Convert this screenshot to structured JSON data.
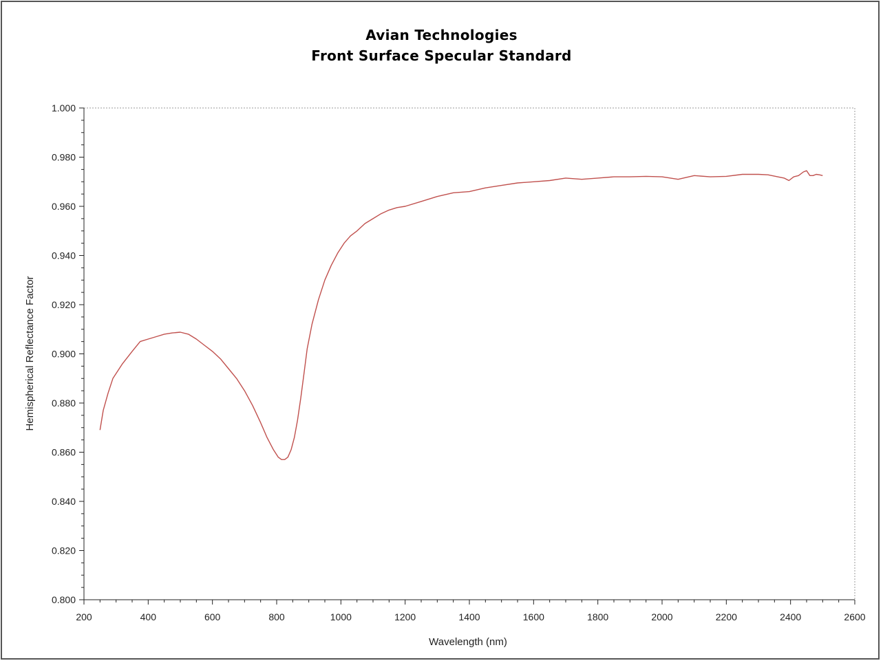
{
  "chart_data": {
    "type": "line",
    "title": "Avian Technologies",
    "subtitle": "Front Surface Specular Standard",
    "xlabel": "Wavelength (nm)",
    "ylabel": "Hemispherical Reflectance Factor",
    "xlim": [
      200,
      2600
    ],
    "ylim": [
      0.8,
      1.0
    ],
    "x_ticks": [
      "200",
      "400",
      "600",
      "800",
      "1000",
      "1200",
      "1400",
      "1600",
      "1800",
      "2000",
      "2200",
      "2400",
      "2600"
    ],
    "y_ticks": [
      "0.800",
      "0.820",
      "0.840",
      "0.860",
      "0.880",
      "0.900",
      "0.920",
      "0.940",
      "0.960",
      "0.980",
      "1.000"
    ],
    "grid": false,
    "series": [
      {
        "color": "#c0504d",
        "x": [
          250,
          260,
          275,
          290,
          320,
          350,
          375,
          400,
          425,
          450,
          475,
          500,
          525,
          550,
          575,
          600,
          625,
          650,
          675,
          700,
          725,
          750,
          770,
          790,
          805,
          815,
          825,
          835,
          845,
          855,
          865,
          875,
          885,
          895,
          910,
          930,
          950,
          970,
          990,
          1010,
          1030,
          1050,
          1075,
          1100,
          1125,
          1150,
          1175,
          1200,
          1250,
          1300,
          1350,
          1400,
          1450,
          1500,
          1550,
          1600,
          1650,
          1700,
          1750,
          1800,
          1850,
          1900,
          1950,
          2000,
          2050,
          2100,
          2150,
          2200,
          2250,
          2300,
          2330,
          2360,
          2380,
          2395,
          2410,
          2425,
          2440,
          2450,
          2460,
          2470,
          2480,
          2490,
          2500
        ],
        "y": [
          0.869,
          0.877,
          0.884,
          0.89,
          0.896,
          0.901,
          0.905,
          0.906,
          0.907,
          0.908,
          0.9085,
          0.9088,
          0.908,
          0.906,
          0.9035,
          0.901,
          0.898,
          0.894,
          0.89,
          0.885,
          0.879,
          0.872,
          0.866,
          0.861,
          0.858,
          0.857,
          0.857,
          0.858,
          0.861,
          0.866,
          0.873,
          0.882,
          0.892,
          0.902,
          0.912,
          0.922,
          0.93,
          0.936,
          0.941,
          0.945,
          0.948,
          0.95,
          0.953,
          0.955,
          0.957,
          0.9585,
          0.9595,
          0.96,
          0.962,
          0.964,
          0.9655,
          0.966,
          0.9675,
          0.9685,
          0.9695,
          0.97,
          0.9705,
          0.9715,
          0.971,
          0.9715,
          0.972,
          0.972,
          0.9722,
          0.972,
          0.971,
          0.9725,
          0.972,
          0.9722,
          0.973,
          0.973,
          0.9728,
          0.972,
          0.9715,
          0.9705,
          0.972,
          0.9725,
          0.974,
          0.9745,
          0.9725,
          0.9725,
          0.973,
          0.9728,
          0.9725
        ]
      }
    ]
  }
}
